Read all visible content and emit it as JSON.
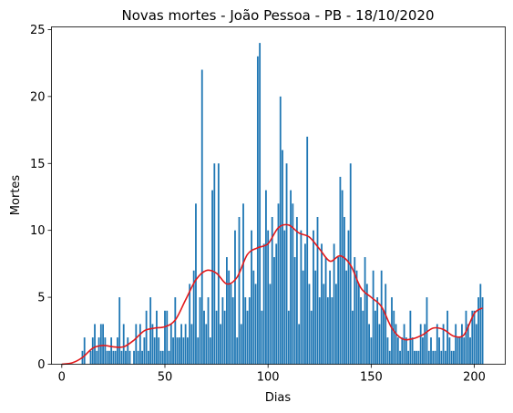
{
  "chart_data": {
    "type": "bar",
    "title": "Novas mortes - João Pessoa - PB - 18/10/2020",
    "xlabel": "Dias",
    "ylabel": "Mortes",
    "xlim": [
      -5,
      215
    ],
    "ylim": [
      0,
      25.2
    ],
    "xticks": [
      0,
      50,
      100,
      150,
      200
    ],
    "yticks": [
      0,
      5,
      10,
      15,
      20,
      25
    ],
    "grid": false,
    "bar_color": "#1f77b4",
    "trend_color": "#e31a1c",
    "series": [
      {
        "type": "bar",
        "x": [
          0,
          1,
          2,
          3,
          4,
          5,
          6,
          7,
          8,
          9,
          10,
          11,
          12,
          13,
          14,
          15,
          16,
          17,
          18,
          19,
          20,
          21,
          22,
          23,
          24,
          25,
          26,
          27,
          28,
          29,
          30,
          31,
          32,
          33,
          34,
          35,
          36,
          37,
          38,
          39,
          40,
          41,
          42,
          43,
          44,
          45,
          46,
          47,
          48,
          49,
          50,
          51,
          52,
          53,
          54,
          55,
          56,
          57,
          58,
          59,
          60,
          61,
          62,
          63,
          64,
          65,
          66,
          67,
          68,
          69,
          70,
          71,
          72,
          73,
          74,
          75,
          76,
          77,
          78,
          79,
          80,
          81,
          82,
          83,
          84,
          85,
          86,
          87,
          88,
          89,
          90,
          91,
          92,
          93,
          94,
          95,
          96,
          97,
          98,
          99,
          100,
          101,
          102,
          103,
          104,
          105,
          106,
          107,
          108,
          109,
          110,
          111,
          112,
          113,
          114,
          115,
          116,
          117,
          118,
          119,
          120,
          121,
          122,
          123,
          124,
          125,
          126,
          127,
          128,
          129,
          130,
          131,
          132,
          133,
          134,
          135,
          136,
          137,
          138,
          139,
          140,
          141,
          142,
          143,
          144,
          145,
          146,
          147,
          148,
          149,
          150,
          151,
          152,
          153,
          154,
          155,
          156,
          157,
          158,
          159,
          160,
          161,
          162,
          163,
          164,
          165,
          166,
          167,
          168,
          169,
          170,
          171,
          172,
          173,
          174,
          175,
          176,
          177,
          178,
          179,
          180,
          181,
          182,
          183,
          184,
          185,
          186,
          187,
          188,
          189,
          190,
          191,
          192,
          193,
          194,
          195,
          196,
          197,
          198,
          199,
          200,
          201,
          202,
          203,
          204
        ],
        "values": [
          0,
          0,
          0,
          0,
          0,
          0,
          0,
          0,
          0,
          0,
          1,
          2,
          0,
          0,
          1,
          2,
          3,
          1,
          2,
          3,
          3,
          2,
          1,
          1,
          2,
          1,
          1,
          2,
          5,
          1,
          3,
          1,
          2,
          1,
          0,
          1,
          3,
          1,
          3,
          1,
          2,
          4,
          1,
          5,
          3,
          2,
          4,
          2,
          1,
          1,
          4,
          4,
          1,
          3,
          2,
          5,
          2,
          2,
          3,
          2,
          3,
          2,
          6,
          3,
          7,
          12,
          2,
          5,
          22,
          4,
          3,
          5,
          2,
          13,
          15,
          4,
          15,
          3,
          5,
          4,
          8,
          7,
          6,
          5,
          10,
          2,
          11,
          3,
          12,
          5,
          4,
          5,
          10,
          7,
          6,
          23,
          24,
          4,
          9,
          13,
          10,
          6,
          11,
          8,
          9,
          12,
          20,
          16,
          10,
          15,
          4,
          13,
          12,
          8,
          11,
          3,
          10,
          7,
          9,
          17,
          6,
          4,
          10,
          7,
          11,
          5,
          9,
          6,
          8,
          5,
          7,
          5,
          9,
          6,
          8,
          14,
          13,
          11,
          7,
          10,
          15,
          4,
          8,
          7,
          6,
          5,
          4,
          8,
          6,
          3,
          2,
          7,
          4,
          5,
          3,
          7,
          4,
          6,
          2,
          1,
          5,
          4,
          3,
          2,
          1,
          2,
          3,
          2,
          1,
          4,
          2,
          1,
          1,
          1,
          3,
          2,
          3,
          5,
          1,
          2,
          1,
          1,
          3,
          2,
          1,
          3,
          1,
          4,
          2,
          1,
          1,
          3,
          2,
          2,
          3,
          2,
          4,
          3,
          2,
          4,
          4,
          3,
          5,
          6,
          5
        ]
      },
      {
        "type": "line",
        "x": [
          0,
          5,
          10,
          15,
          20,
          25,
          30,
          35,
          40,
          45,
          50,
          55,
          60,
          65,
          70,
          75,
          80,
          85,
          90,
          95,
          100,
          105,
          110,
          115,
          120,
          125,
          130,
          135,
          140,
          145,
          150,
          155,
          160,
          165,
          170,
          175,
          180,
          185,
          190,
          195,
          200,
          204
        ],
        "values": [
          0,
          0.1,
          0.5,
          1.2,
          1.4,
          1.3,
          1.3,
          1.8,
          2.5,
          2.7,
          2.8,
          3.3,
          4.8,
          6.3,
          7.0,
          6.8,
          6.0,
          6.5,
          8.2,
          8.7,
          9.0,
          10.2,
          10.4,
          9.8,
          9.5,
          8.6,
          7.7,
          8.1,
          7.4,
          5.7,
          5.0,
          4.3,
          2.7,
          1.9,
          1.9,
          2.2,
          2.7,
          2.6,
          2.1,
          2.2,
          3.8,
          4.2
        ]
      }
    ]
  }
}
